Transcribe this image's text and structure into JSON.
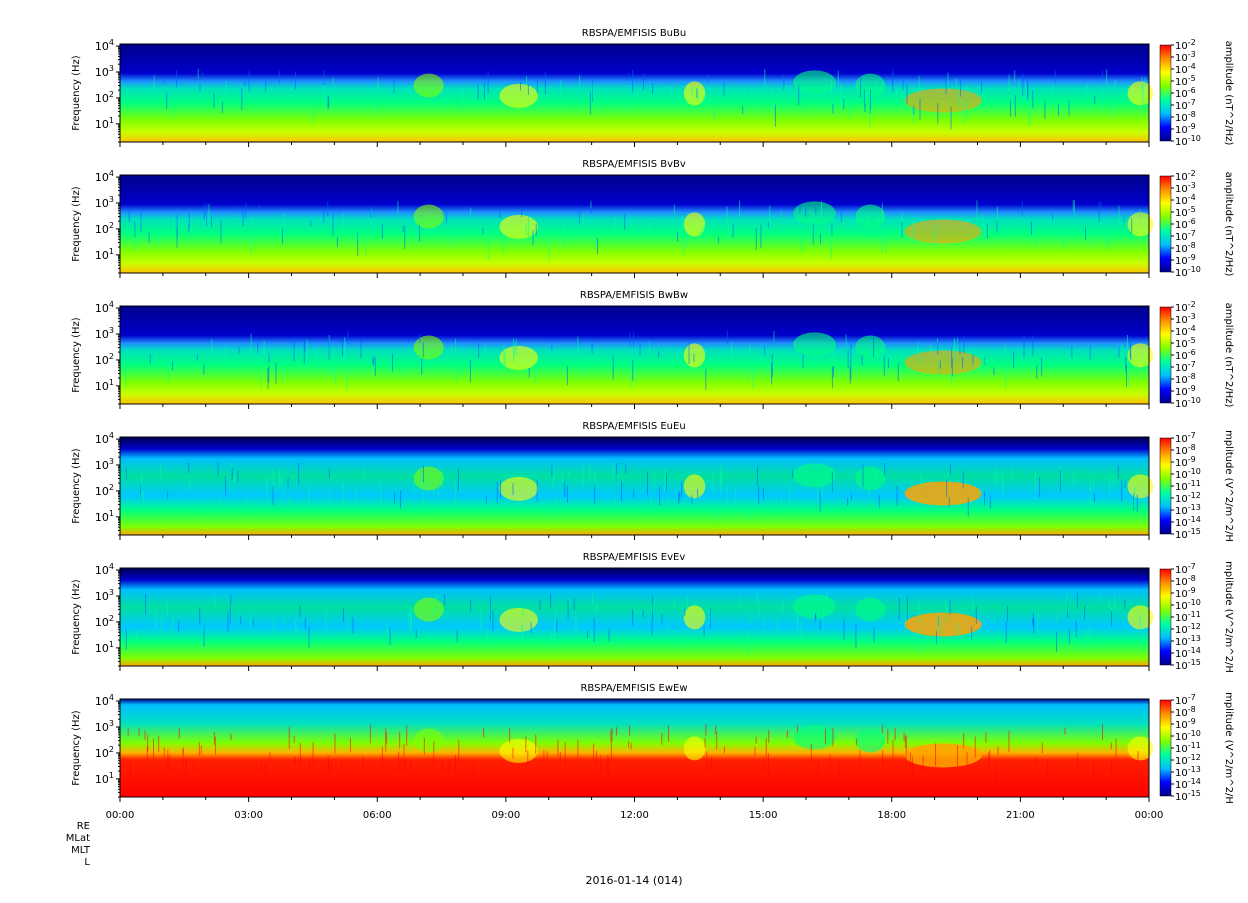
{
  "figure": {
    "date_label": "2016-01-14 (014)",
    "ephemeris_labels": [
      "RE",
      "MLat",
      "MLT",
      "L"
    ]
  },
  "time_axis": {
    "tick_labels": [
      "00:00",
      "03:00",
      "06:00",
      "09:00",
      "12:00",
      "15:00",
      "18:00",
      "21:00",
      "00:00"
    ],
    "range_hours": [
      0,
      24
    ]
  },
  "colors": {
    "colormap": [
      "#00008b",
      "#0000ff",
      "#00bfff",
      "#00ffa0",
      "#7fff00",
      "#ffff00",
      "#ff8c00",
      "#ff0000"
    ]
  },
  "chart_data": [
    {
      "type": "heatmap",
      "title": "RBSPA/EMFISIS  BuBu",
      "ylabel": "Frequency (Hz)",
      "ylog": true,
      "ylim": [
        2,
        12000
      ],
      "ytick_exponents": [
        1,
        2,
        3,
        4
      ],
      "colorbar": {
        "label": "amplitude (nT^2/Hz)",
        "tick_exponents": [
          -2,
          -3,
          -4,
          -5,
          -6,
          -7,
          -8,
          -9,
          -10
        ]
      }
    },
    {
      "type": "heatmap",
      "title": "RBSPA/EMFISIS  BvBv",
      "ylabel": "Frequency (Hz)",
      "ylog": true,
      "ylim": [
        2,
        12000
      ],
      "ytick_exponents": [
        1,
        2,
        3,
        4
      ],
      "colorbar": {
        "label": "amplitude (nT^2/Hz)",
        "tick_exponents": [
          -2,
          -3,
          -4,
          -5,
          -6,
          -7,
          -8,
          -9,
          -10
        ]
      }
    },
    {
      "type": "heatmap",
      "title": "RBSPA/EMFISIS  BwBw",
      "ylabel": "Frequency (Hz)",
      "ylog": true,
      "ylim": [
        2,
        12000
      ],
      "ytick_exponents": [
        1,
        2,
        3,
        4
      ],
      "colorbar": {
        "label": "amplitude (nT^2/Hz)",
        "tick_exponents": [
          -2,
          -3,
          -4,
          -5,
          -6,
          -7,
          -8,
          -9,
          -10
        ]
      }
    },
    {
      "type": "heatmap",
      "title": "RBSPA/EMFISIS  EuEu",
      "ylabel": "Frequency (Hz)",
      "ylog": true,
      "ylim": [
        2,
        12000
      ],
      "ytick_exponents": [
        1,
        2,
        3,
        4
      ],
      "colorbar": {
        "label": "mplitude (V^2/m^2/H",
        "tick_exponents": [
          -7,
          -8,
          -9,
          -10,
          -11,
          -12,
          -13,
          -14,
          -15
        ]
      }
    },
    {
      "type": "heatmap",
      "title": "RBSPA/EMFISIS  EvEv",
      "ylabel": "Frequency (Hz)",
      "ylog": true,
      "ylim": [
        2,
        12000
      ],
      "ytick_exponents": [
        1,
        2,
        3,
        4
      ],
      "colorbar": {
        "label": "mplitude (V^2/m^2/H",
        "tick_exponents": [
          -7,
          -8,
          -9,
          -10,
          -11,
          -12,
          -13,
          -14,
          -15
        ]
      }
    },
    {
      "type": "heatmap",
      "title": "RBSPA/EMFISIS  EwEw",
      "ylabel": "Frequency (Hz)",
      "ylog": true,
      "ylim": [
        2,
        12000
      ],
      "ytick_exponents": [
        1,
        2,
        3,
        4
      ],
      "colorbar": {
        "label": "mplitude (V^2/m^2/H",
        "tick_exponents": [
          -7,
          -8,
          -9,
          -10,
          -11,
          -12,
          -13,
          -14,
          -15
        ]
      }
    }
  ]
}
